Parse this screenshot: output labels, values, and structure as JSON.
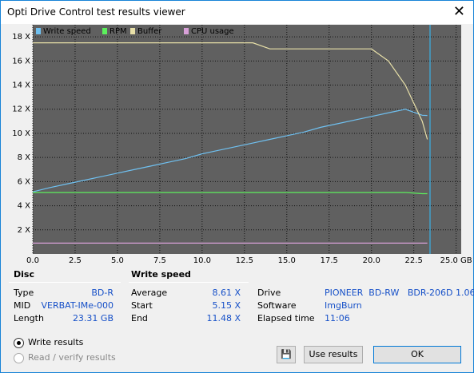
{
  "window": {
    "title": "Opti Drive Control test results viewer"
  },
  "chart_data": {
    "type": "line",
    "x": [
      0,
      1,
      2,
      3,
      4,
      5,
      6,
      7,
      8,
      9,
      10,
      11,
      12,
      13,
      14,
      15,
      16,
      17,
      18,
      19,
      20,
      21,
      22,
      23,
      23.3
    ],
    "series": [
      {
        "name": "Write speed",
        "color": "#6fc0f0",
        "values": [
          5.15,
          5.5,
          5.8,
          6.1,
          6.4,
          6.7,
          7.0,
          7.3,
          7.6,
          7.9,
          8.3,
          8.6,
          8.9,
          9.2,
          9.5,
          9.8,
          10.1,
          10.5,
          10.8,
          11.1,
          11.4,
          11.7,
          12.0,
          11.5,
          11.48
        ]
      },
      {
        "name": "RPM",
        "color": "#5cf05c",
        "values": [
          5.1,
          5.1,
          5.1,
          5.1,
          5.1,
          5.1,
          5.1,
          5.1,
          5.1,
          5.1,
          5.1,
          5.1,
          5.1,
          5.1,
          5.1,
          5.1,
          5.1,
          5.1,
          5.1,
          5.1,
          5.1,
          5.1,
          5.1,
          5.0,
          5.0
        ]
      },
      {
        "name": "Buffer",
        "color": "#e8e0a8",
        "values": [
          17.5,
          17.5,
          17.5,
          17.5,
          17.5,
          17.5,
          17.5,
          17.5,
          17.5,
          17.5,
          17.5,
          17.5,
          17.5,
          17.5,
          17.0,
          17.0,
          17.0,
          17.0,
          17.0,
          17.0,
          17.0,
          16.0,
          14.0,
          11.0,
          9.5
        ]
      },
      {
        "name": "CPU usage",
        "color": "#d8a0d8",
        "values": [
          0.9,
          0.9,
          0.9,
          0.9,
          0.9,
          0.9,
          0.9,
          0.9,
          0.9,
          0.9,
          0.9,
          0.9,
          0.9,
          0.9,
          0.9,
          0.9,
          0.9,
          0.9,
          0.9,
          0.9,
          0.9,
          0.9,
          0.9,
          0.9,
          0.9
        ]
      }
    ],
    "xlim": [
      0,
      25.3
    ],
    "ylim": [
      0,
      19
    ],
    "xticks": [
      {
        "value": 0,
        "label": "0.0"
      },
      2.5,
      {
        "value": 5,
        "label": "5.0"
      },
      7.5,
      {
        "value": 10,
        "label": "10.0"
      },
      12.5,
      {
        "value": 15,
        "label": "15.0"
      },
      17.5,
      {
        "value": 20,
        "label": "20.0"
      },
      22.5,
      {
        "value": 25,
        "label": "25.0 GB"
      }
    ],
    "yticks": [
      {
        "value": 2,
        "label": "2 X"
      },
      {
        "value": 4,
        "label": "4 X"
      },
      {
        "value": 6,
        "label": "6 X"
      },
      {
        "value": 8,
        "label": "8 X"
      },
      {
        "value": 10,
        "label": "10 X"
      },
      {
        "value": 12,
        "label": "12 X"
      },
      {
        "value": 14,
        "label": "14 X"
      },
      {
        "value": 16,
        "label": "16 X"
      },
      {
        "value": 18,
        "label": "18 X"
      }
    ],
    "grid": true
  },
  "disc": {
    "heading": "Disc",
    "rows": [
      [
        "Type",
        "BD-R"
      ],
      [
        "MID",
        "VERBAT-IMe-000"
      ],
      [
        "Length",
        "23.31 GB"
      ]
    ]
  },
  "write_speed": {
    "heading": "Write speed",
    "rows": [
      [
        "Average",
        "8.61 X"
      ],
      [
        "Start",
        "5.15 X"
      ],
      [
        "End",
        "11.48 X"
      ]
    ]
  },
  "info": {
    "rows": [
      [
        "Drive",
        "PIONEER  BD-RW   BDR-206D 1.06"
      ],
      [
        "Software",
        "ImgBurn"
      ],
      [
        "Elapsed time",
        "11:06"
      ]
    ]
  },
  "options": [
    "Write results",
    "Read / verify results"
  ],
  "buttons": {
    "use": "Use results",
    "ok": "OK"
  }
}
